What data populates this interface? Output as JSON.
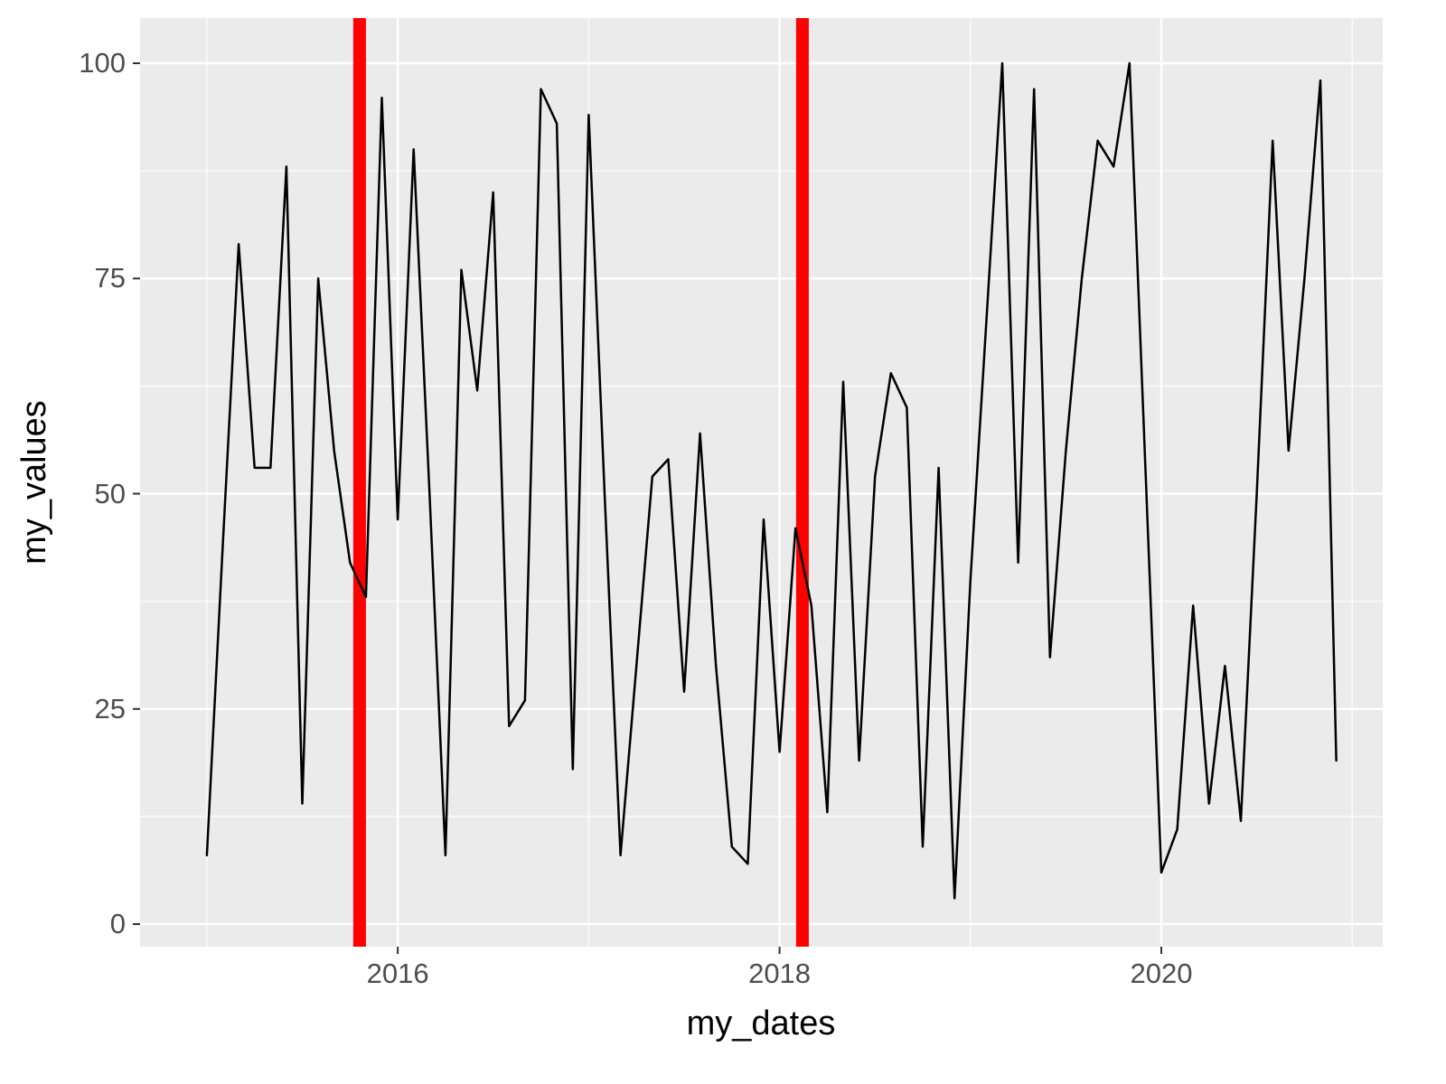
{
  "chart_data": {
    "type": "line",
    "title": "",
    "xlabel": "my_dates",
    "ylabel": "my_values",
    "xlim": [
      2014.65,
      2021.16
    ],
    "ylim": [
      -2.62,
      105.25
    ],
    "x_tick_values": [
      2016,
      2018,
      2020
    ],
    "x_tick_labels": [
      "2016",
      "2018",
      "2020"
    ],
    "y_tick_values": [
      0,
      25,
      50,
      75,
      100
    ],
    "y_tick_labels": [
      "0",
      "25",
      "50",
      "75",
      "100"
    ],
    "x_minor_ticks": [
      2015,
      2017,
      2019,
      2021
    ],
    "y_minor_ticks": [
      12.5,
      37.5,
      62.5,
      87.5
    ],
    "grid": "on",
    "legend": "none",
    "series": [
      {
        "name": "my_values",
        "color": "#000000",
        "x_start_year": 2015,
        "x_step_months": 1,
        "values": [
          8,
          44,
          79,
          53,
          53,
          88,
          14,
          75,
          55,
          42,
          38,
          96,
          47,
          90,
          50,
          8,
          76,
          62,
          85,
          23,
          26,
          97,
          93,
          18,
          94,
          50,
          8,
          30,
          52,
          54,
          27,
          57,
          30,
          9,
          7,
          47,
          20,
          46,
          37,
          13,
          63,
          19,
          52,
          64,
          60,
          9,
          53,
          3,
          40,
          70,
          100,
          42,
          97,
          31,
          55,
          75,
          91,
          88,
          100,
          53,
          6,
          11,
          37,
          14,
          30,
          12,
          50,
          91,
          55,
          75,
          98,
          19
        ]
      }
    ],
    "vlines": {
      "x": [
        2015.8,
        2018.12
      ],
      "color": "#FF0000",
      "stroke_width": 14
    },
    "colors": {
      "panel_bg": "#EBEBEB",
      "grid": "#FFFFFF",
      "line": "#000000",
      "tick_mark": "#333333",
      "tick_text": "#4D4D4D",
      "axis_title": "#000000",
      "figure_bg": "#FFFFFF"
    }
  }
}
